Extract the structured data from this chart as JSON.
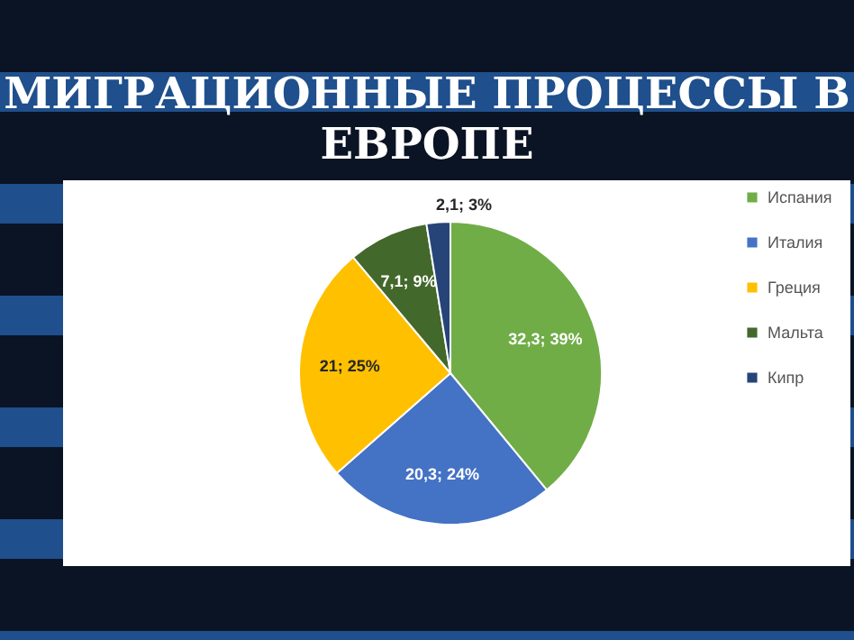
{
  "chart_data": {
    "type": "pie",
    "title": "МИГРАЦИОННЫЕ ПРОЦЕССЫ В ЕВРОПЕ",
    "categories": [
      "Испания",
      "Италия",
      "Греция",
      "Мальта",
      "Кипр"
    ],
    "values": [
      32.3,
      20.3,
      21,
      7.1,
      2.1
    ],
    "value_labels": [
      "32,3; 39%",
      "20,3; 24%",
      "21; 25%",
      "7,1; 9%",
      "2,1; 3%"
    ],
    "colors": [
      "#70ad47",
      "#4472c4",
      "#ffc000",
      "#43682b",
      "#264478"
    ],
    "legend": "right"
  }
}
